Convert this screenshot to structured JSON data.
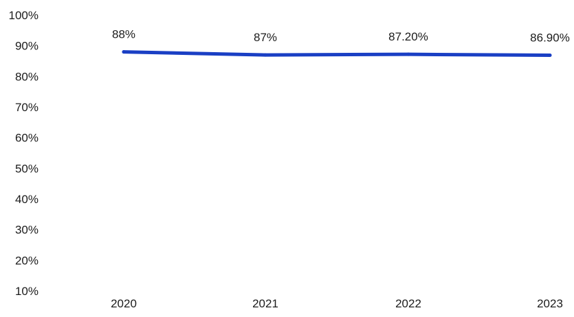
{
  "chart_data": {
    "type": "line",
    "categories": [
      "2020",
      "2021",
      "2022",
      "2023"
    ],
    "series": [
      {
        "values": [
          88,
          87,
          87.2,
          86.9
        ],
        "data_labels": [
          "88%",
          "87%",
          "87.20%",
          "86.90%"
        ],
        "color": "#1a3fc4"
      }
    ],
    "y_ticks": [
      "10%",
      "20%",
      "30%",
      "40%",
      "50%",
      "60%",
      "70%",
      "80%",
      "90%",
      "100%"
    ],
    "ylim": [
      10,
      100
    ],
    "grid": false,
    "legend": "none",
    "title": "",
    "xlabel": "",
    "ylabel": ""
  }
}
